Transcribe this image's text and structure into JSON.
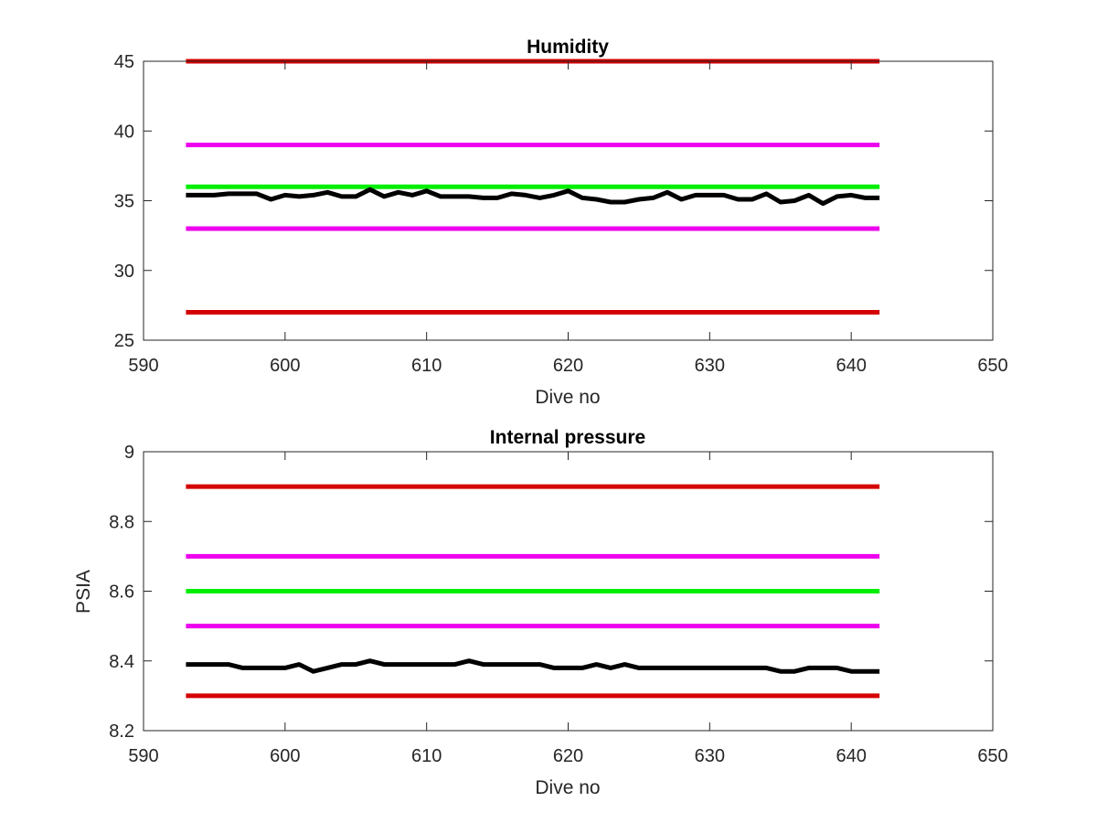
{
  "chart_data": [
    {
      "type": "line",
      "title": "Humidity",
      "xlabel": "Dive no",
      "ylabel": "",
      "xlim": [
        590,
        650
      ],
      "ylim": [
        25,
        45
      ],
      "xticks": [
        "590",
        "600",
        "610",
        "620",
        "630",
        "640",
        "650"
      ],
      "yticks": [
        "25",
        "30",
        "35",
        "40",
        "45"
      ],
      "grid": false,
      "colors": {
        "limit_outer": "#d50000",
        "limit_inner": "#ee00ee",
        "target": "#00ee00",
        "measured": "#000000"
      },
      "series": [
        {
          "x": [
            593,
            642
          ],
          "y": [
            45,
            45
          ],
          "color": "#d50000"
        },
        {
          "x": [
            593,
            642
          ],
          "y": [
            39,
            39
          ],
          "color": "#ee00ee"
        },
        {
          "x": [
            593,
            642
          ],
          "y": [
            36,
            36
          ],
          "color": "#00ee00"
        },
        {
          "x": [
            593,
            642
          ],
          "y": [
            33,
            33
          ],
          "color": "#ee00ee"
        },
        {
          "x": [
            593,
            642
          ],
          "y": [
            27,
            27
          ],
          "color": "#d50000"
        },
        {
          "color": "#000000",
          "x": [
            593,
            594,
            595,
            596,
            597,
            598,
            599,
            600,
            601,
            602,
            603,
            604,
            605,
            606,
            607,
            608,
            609,
            610,
            611,
            612,
            613,
            614,
            615,
            616,
            617,
            618,
            619,
            620,
            621,
            622,
            623,
            624,
            625,
            626,
            627,
            628,
            629,
            630,
            631,
            632,
            633,
            634,
            635,
            636,
            637,
            638,
            639,
            640,
            641,
            642
          ],
          "y": [
            35.4,
            35.4,
            35.4,
            35.5,
            35.5,
            35.5,
            35.1,
            35.4,
            35.3,
            35.4,
            35.6,
            35.3,
            35.3,
            35.8,
            35.3,
            35.6,
            35.4,
            35.7,
            35.3,
            35.3,
            35.3,
            35.2,
            35.2,
            35.5,
            35.4,
            35.2,
            35.4,
            35.7,
            35.2,
            35.1,
            34.9,
            34.9,
            35.1,
            35.2,
            35.6,
            35.1,
            35.4,
            35.4,
            35.4,
            35.1,
            35.1,
            35.5,
            34.9,
            35.0,
            35.4,
            34.8,
            35.3,
            35.4,
            35.2,
            35.2
          ]
        }
      ]
    },
    {
      "type": "line",
      "title": "Internal pressure",
      "xlabel": "Dive no",
      "ylabel": "PSIA",
      "xlim": [
        590,
        650
      ],
      "ylim": [
        8.2,
        9
      ],
      "xticks": [
        "590",
        "600",
        "610",
        "620",
        "630",
        "640",
        "650"
      ],
      "yticks": [
        "8.2",
        "8.4",
        "8.6",
        "8.8",
        "9"
      ],
      "grid": false,
      "colors": {
        "limit_outer": "#d50000",
        "limit_inner": "#ee00ee",
        "target": "#00ee00",
        "measured": "#000000"
      },
      "series": [
        {
          "x": [
            593,
            642
          ],
          "y": [
            8.9,
            8.9
          ],
          "color": "#d50000"
        },
        {
          "x": [
            593,
            642
          ],
          "y": [
            8.7,
            8.7
          ],
          "color": "#ee00ee"
        },
        {
          "x": [
            593,
            642
          ],
          "y": [
            8.6,
            8.6
          ],
          "color": "#00ee00"
        },
        {
          "x": [
            593,
            642
          ],
          "y": [
            8.5,
            8.5
          ],
          "color": "#ee00ee"
        },
        {
          "x": [
            593,
            642
          ],
          "y": [
            8.3,
            8.3
          ],
          "color": "#d50000"
        },
        {
          "color": "#000000",
          "x": [
            593,
            594,
            595,
            596,
            597,
            598,
            599,
            600,
            601,
            602,
            603,
            604,
            605,
            606,
            607,
            608,
            609,
            610,
            611,
            612,
            613,
            614,
            615,
            616,
            617,
            618,
            619,
            620,
            621,
            622,
            623,
            624,
            625,
            626,
            627,
            628,
            629,
            630,
            631,
            632,
            633,
            634,
            635,
            636,
            637,
            638,
            639,
            640,
            641,
            642
          ],
          "y": [
            8.39,
            8.39,
            8.39,
            8.39,
            8.38,
            8.38,
            8.38,
            8.38,
            8.39,
            8.37,
            8.38,
            8.39,
            8.39,
            8.4,
            8.39,
            8.39,
            8.39,
            8.39,
            8.39,
            8.39,
            8.4,
            8.39,
            8.39,
            8.39,
            8.39,
            8.39,
            8.38,
            8.38,
            8.38,
            8.39,
            8.38,
            8.39,
            8.38,
            8.38,
            8.38,
            8.38,
            8.38,
            8.38,
            8.38,
            8.38,
            8.38,
            8.38,
            8.37,
            8.37,
            8.38,
            8.38,
            8.38,
            8.37,
            8.37,
            8.37
          ]
        }
      ]
    }
  ]
}
